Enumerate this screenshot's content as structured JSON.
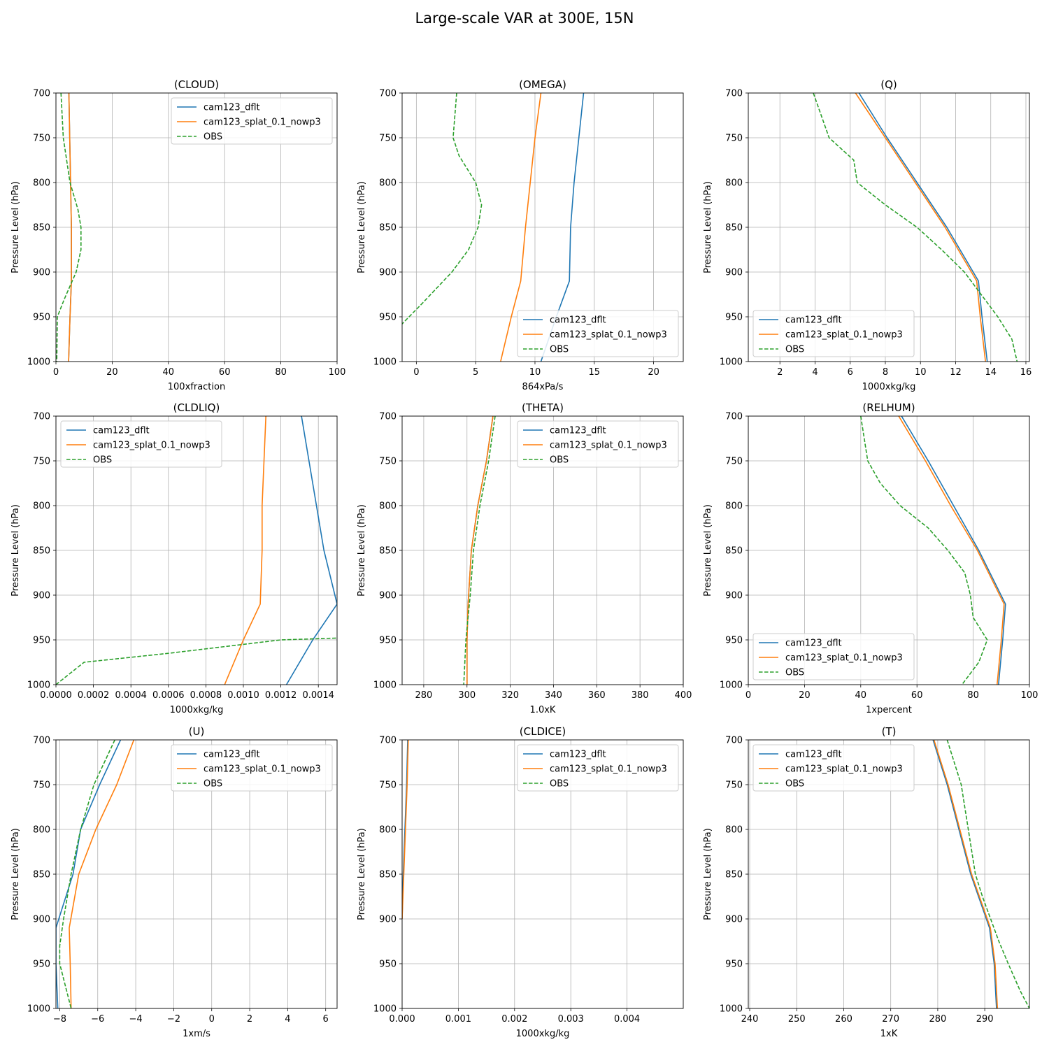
{
  "figure": {
    "title": "Large-scale VAR at 300E, 15N"
  },
  "legend_labels": [
    "cam123_dflt",
    "cam123_splat_0.1_nowp3",
    "OBS"
  ],
  "colors": {
    "dflt": "#1f77b4",
    "splat": "#ff7f0e",
    "obs": "#2ca02c",
    "grid": "#b0b0b0"
  },
  "chart_data": [
    {
      "type": "line",
      "title": "(CLOUD)",
      "xlabel": "100xfraction",
      "ylabel": "Pressure Level (hPa)",
      "xlim": [
        0,
        100
      ],
      "ylim": [
        1000,
        700
      ],
      "xticks": [
        0,
        20,
        40,
        60,
        80,
        100
      ],
      "xtick_labels": [
        "0",
        "20",
        "40",
        "60",
        "80",
        "100"
      ],
      "yticks": [
        700,
        750,
        800,
        850,
        900,
        950,
        1000
      ],
      "grid": true,
      "legend": "upper-right",
      "series": [
        {
          "name": "cam123_dflt",
          "style": "solid",
          "x": [
            4.6,
            4.9,
            5.2,
            5.5,
            5.5,
            5.0,
            4.5
          ],
          "y": [
            700,
            750,
            800,
            850,
            910,
            950,
            1000
          ]
        },
        {
          "name": "cam123_splat_0.1_nowp3",
          "style": "solid",
          "x": [
            4.6,
            4.9,
            5.2,
            5.5,
            5.5,
            5.0,
            4.5
          ],
          "y": [
            700,
            750,
            800,
            850,
            910,
            950,
            1000
          ]
        },
        {
          "name": "OBS",
          "style": "dashed",
          "x": [
            1.8,
            2.6,
            5.0,
            7.8,
            8.9,
            8.9,
            7.2,
            3.0,
            0.5,
            0.3
          ],
          "y": [
            700,
            750,
            800,
            830,
            850,
            875,
            900,
            930,
            950,
            1000
          ]
        }
      ]
    },
    {
      "type": "line",
      "title": "(OMEGA)",
      "xlabel": "864xPa/s",
      "ylabel": "Pressure Level (hPa)",
      "xlim": [
        -1.2,
        22.5
      ],
      "ylim": [
        1000,
        700
      ],
      "xticks": [
        0,
        5,
        10,
        15,
        20
      ],
      "xtick_labels": [
        "0",
        "5",
        "10",
        "15",
        "20"
      ],
      "yticks": [
        700,
        750,
        800,
        850,
        900,
        950,
        1000
      ],
      "grid": true,
      "legend": "lower-right",
      "series": [
        {
          "name": "cam123_dflt",
          "style": "solid",
          "x": [
            14.1,
            13.7,
            13.3,
            13.0,
            12.9,
            11.8,
            10.5
          ],
          "y": [
            700,
            750,
            800,
            850,
            910,
            950,
            1000
          ]
        },
        {
          "name": "cam123_splat_0.1_nowp3",
          "style": "solid",
          "x": [
            10.5,
            10.0,
            9.6,
            9.2,
            8.8,
            8.0,
            7.1
          ],
          "y": [
            700,
            750,
            800,
            850,
            910,
            950,
            1000
          ]
        },
        {
          "name": "OBS",
          "style": "dashed",
          "x": [
            3.4,
            3.1,
            3.6,
            5.0,
            5.5,
            5.2,
            4.4,
            3.0,
            0.5,
            -1.2
          ],
          "y": [
            700,
            750,
            770,
            800,
            825,
            850,
            875,
            900,
            935,
            958
          ]
        }
      ]
    },
    {
      "type": "line",
      "title": "(Q)",
      "xlabel": "1000xkg/kg",
      "ylabel": "Pressure Level (hPa)",
      "xlim": [
        0.2,
        16.2
      ],
      "ylim": [
        1000,
        700
      ],
      "xticks": [
        2,
        4,
        6,
        8,
        10,
        12,
        14,
        16
      ],
      "xtick_labels": [
        "2",
        "4",
        "6",
        "8",
        "10",
        "12",
        "14",
        "16"
      ],
      "yticks": [
        700,
        750,
        800,
        850,
        900,
        950,
        1000
      ],
      "grid": true,
      "legend": "lower-left",
      "series": [
        {
          "name": "cam123_dflt",
          "style": "solid",
          "x": [
            6.5,
            8.1,
            9.8,
            11.5,
            13.3,
            13.5,
            13.8
          ],
          "y": [
            700,
            750,
            800,
            850,
            910,
            950,
            1000
          ]
        },
        {
          "name": "cam123_splat_0.1_nowp3",
          "style": "solid",
          "x": [
            6.3,
            8.0,
            9.7,
            11.4,
            13.2,
            13.4,
            13.7
          ],
          "y": [
            700,
            750,
            800,
            850,
            910,
            950,
            1000
          ]
        },
        {
          "name": "OBS",
          "style": "dashed",
          "x": [
            3.9,
            4.8,
            6.2,
            6.4,
            8.0,
            9.8,
            11.2,
            12.5,
            14.4,
            15.2,
            15.5
          ],
          "y": [
            700,
            750,
            775,
            800,
            825,
            850,
            875,
            900,
            950,
            975,
            1000
          ]
        }
      ]
    },
    {
      "type": "line",
      "title": "(CLDLIQ)",
      "xlabel": "1000xkg/kg",
      "ylabel": "Pressure Level (hPa)",
      "xlim": [
        0,
        0.0015
      ],
      "ylim": [
        1000,
        700
      ],
      "xticks": [
        0,
        0.0002,
        0.0004,
        0.0006,
        0.0008,
        0.001,
        0.0012,
        0.0014
      ],
      "xtick_labels": [
        "0.0000",
        "0.0002",
        "0.0004",
        "0.0006",
        "0.0008",
        "0.0010",
        "0.0012",
        "0.0014"
      ],
      "yticks": [
        700,
        750,
        800,
        850,
        900,
        950,
        1000
      ],
      "grid": true,
      "legend": "upper-left",
      "series": [
        {
          "name": "cam123_dflt",
          "style": "solid",
          "x": [
            0.00131,
            0.00135,
            0.00139,
            0.00143,
            0.0015,
            0.00137,
            0.00123
          ],
          "y": [
            700,
            750,
            800,
            850,
            910,
            950,
            1000
          ]
        },
        {
          "name": "cam123_splat_0.1_nowp3",
          "style": "solid",
          "x": [
            0.00112,
            0.00111,
            0.0011,
            0.0011,
            0.00109,
            0.001,
            0.0009
          ],
          "y": [
            700,
            750,
            800,
            850,
            910,
            950,
            1000
          ]
        },
        {
          "name": "OBS",
          "style": "dashed",
          "x": [
            0.0,
            0.00015,
            0.0006,
            0.001,
            0.0012,
            0.0015
          ],
          "y": [
            1000,
            975,
            965,
            955,
            950,
            948
          ]
        }
      ]
    },
    {
      "type": "line",
      "title": "(THETA)",
      "xlabel": "1.0xK",
      "ylabel": "Pressure Level (hPa)",
      "xlim": [
        270,
        400
      ],
      "ylim": [
        1000,
        700
      ],
      "xticks": [
        280,
        300,
        320,
        340,
        360,
        380,
        400
      ],
      "xtick_labels": [
        "280",
        "300",
        "320",
        "340",
        "360",
        "380",
        "400"
      ],
      "yticks": [
        700,
        750,
        800,
        850,
        900,
        950,
        1000
      ],
      "grid": true,
      "legend": "upper-right",
      "series": [
        {
          "name": "cam123_dflt",
          "style": "solid",
          "x": [
            312,
            309,
            305,
            302,
            300.5,
            300,
            300
          ],
          "y": [
            700,
            750,
            800,
            850,
            910,
            950,
            1000
          ]
        },
        {
          "name": "cam123_splat_0.1_nowp3",
          "style": "solid",
          "x": [
            312,
            309,
            305,
            302,
            300.5,
            300,
            300
          ],
          "y": [
            700,
            750,
            800,
            850,
            910,
            950,
            1000
          ]
        },
        {
          "name": "OBS",
          "style": "dashed",
          "x": [
            313,
            310,
            306,
            303,
            301.5,
            299.5,
            299,
            298.5
          ],
          "y": [
            700,
            750,
            800,
            850,
            900,
            950,
            975,
            1000
          ]
        }
      ]
    },
    {
      "type": "line",
      "title": "(RELHUM)",
      "xlabel": "1xpercent",
      "ylabel": "Pressure Level (hPa)",
      "xlim": [
        0,
        100
      ],
      "ylim": [
        1000,
        700
      ],
      "xticks": [
        0,
        20,
        40,
        60,
        80,
        100
      ],
      "xtick_labels": [
        "0",
        "20",
        "40",
        "60",
        "80",
        "100"
      ],
      "yticks": [
        700,
        750,
        800,
        850,
        900,
        950,
        1000
      ],
      "grid": true,
      "legend": "lower-left",
      "series": [
        {
          "name": "cam123_dflt",
          "style": "solid",
          "x": [
            54.5,
            64,
            73,
            82,
            91.5,
            90.5,
            89
          ],
          "y": [
            700,
            750,
            800,
            850,
            910,
            950,
            1000
          ]
        },
        {
          "name": "cam123_splat_0.1_nowp3",
          "style": "solid",
          "x": [
            53.5,
            63,
            72,
            81.5,
            91,
            90,
            88.5
          ],
          "y": [
            700,
            750,
            800,
            850,
            910,
            950,
            1000
          ]
        },
        {
          "name": "OBS",
          "style": "dashed",
          "x": [
            40,
            42.5,
            47,
            54,
            64,
            71,
            77,
            79,
            80,
            85,
            82,
            76
          ],
          "y": [
            700,
            750,
            775,
            800,
            825,
            850,
            875,
            900,
            925,
            950,
            975,
            1000
          ]
        }
      ]
    },
    {
      "type": "line",
      "title": "(U)",
      "xlabel": "1xm/s",
      "ylabel": "Pressure Level (hPa)",
      "xlim": [
        -8.2,
        6.6
      ],
      "ylim": [
        1000,
        700
      ],
      "xticks": [
        -8,
        -6,
        -4,
        -2,
        0,
        2,
        4,
        6
      ],
      "xtick_labels": [
        "−8",
        "−6",
        "−4",
        "−2",
        "0",
        "2",
        "4",
        "6"
      ],
      "yticks": [
        700,
        750,
        800,
        850,
        900,
        950,
        1000
      ],
      "grid": true,
      "legend": "upper-right",
      "series": [
        {
          "name": "cam123_dflt",
          "style": "solid",
          "x": [
            -4.8,
            -5.9,
            -6.9,
            -7.3,
            -8.2,
            -8.2,
            -8.1
          ],
          "y": [
            700,
            750,
            800,
            850,
            910,
            950,
            1000
          ]
        },
        {
          "name": "cam123_splat_0.1_nowp3",
          "style": "solid",
          "x": [
            -4.1,
            -5.0,
            -6.1,
            -7.0,
            -7.5,
            -7.45,
            -7.4
          ],
          "y": [
            700,
            750,
            800,
            850,
            910,
            950,
            1000
          ]
        },
        {
          "name": "OBS",
          "style": "dashed",
          "x": [
            -5.1,
            -6.2,
            -6.9,
            -7.4,
            -7.8,
            -8.0,
            -8.0,
            -7.4
          ],
          "y": [
            700,
            750,
            800,
            850,
            900,
            930,
            950,
            1000
          ]
        }
      ]
    },
    {
      "type": "line",
      "title": "(CLDICE)",
      "xlabel": "1000xkg/kg",
      "ylabel": "Pressure Level (hPa)",
      "xlim": [
        0,
        0.005
      ],
      "ylim": [
        1000,
        700
      ],
      "xticks": [
        0,
        0.001,
        0.002,
        0.003,
        0.004
      ],
      "xtick_labels": [
        "0.000",
        "0.001",
        "0.002",
        "0.003",
        "0.004"
      ],
      "yticks": [
        700,
        750,
        800,
        850,
        900,
        950,
        1000
      ],
      "grid": true,
      "legend": "upper-right",
      "series": [
        {
          "name": "cam123_dflt",
          "style": "solid",
          "x": [
            0.0001,
            8e-05,
            5e-05,
            2e-05,
            0.0
          ],
          "y": [
            700,
            750,
            800,
            850,
            900
          ]
        },
        {
          "name": "cam123_splat_0.1_nowp3",
          "style": "solid",
          "x": [
            0.00011,
            9e-05,
            6e-05,
            3e-05,
            0.0
          ],
          "y": [
            700,
            750,
            800,
            850,
            900
          ]
        }
      ]
    },
    {
      "type": "line",
      "title": "(T)",
      "xlabel": "1xK",
      "ylabel": "Pressure Level (hPa)",
      "xlim": [
        239.7,
        299.5
      ],
      "ylim": [
        1000,
        700
      ],
      "xticks": [
        240,
        250,
        260,
        270,
        280,
        290
      ],
      "xtick_labels": [
        "240",
        "250",
        "260",
        "270",
        "280",
        "290"
      ],
      "yticks": [
        700,
        750,
        800,
        850,
        900,
        950,
        1000
      ],
      "grid": true,
      "legend": "upper-left",
      "series": [
        {
          "name": "cam123_dflt",
          "style": "solid",
          "x": [
            279,
            282,
            284.5,
            287,
            291,
            292,
            292.5
          ],
          "y": [
            700,
            750,
            800,
            850,
            910,
            950,
            1000
          ]
        },
        {
          "name": "cam123_splat_0.1_nowp3",
          "style": "solid",
          "x": [
            279.2,
            282.2,
            284.7,
            287.2,
            291.2,
            292.2,
            292.7
          ],
          "y": [
            700,
            750,
            800,
            850,
            910,
            950,
            1000
          ]
        },
        {
          "name": "OBS",
          "style": "dashed",
          "x": [
            282,
            285,
            286.5,
            288,
            289.5,
            293,
            295,
            297.5,
            299.5
          ],
          "y": [
            700,
            750,
            800,
            850,
            875,
            925,
            950,
            980,
            1000
          ]
        }
      ]
    }
  ]
}
